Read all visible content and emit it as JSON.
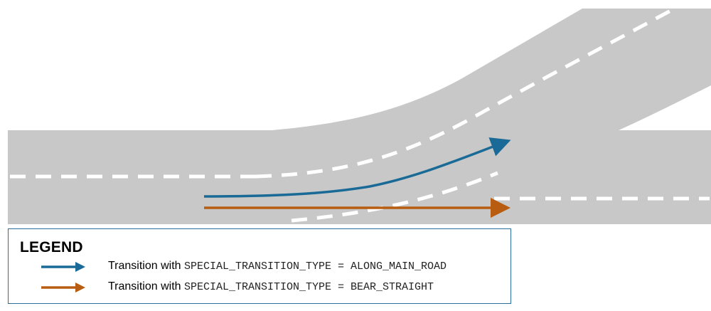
{
  "colors": {
    "road": "#c8c8c8",
    "lane_marking": "#ffffff",
    "along_main_road": "#1a6a97",
    "bear_straight": "#b85c12",
    "legend_border": "#2a6f9e"
  },
  "legend": {
    "title": "LEGEND",
    "items": [
      {
        "prefix": "Transition with ",
        "code": "SPECIAL_TRANSITION_TYPE = ALONG_MAIN_ROAD",
        "color": "#1a6a97",
        "icon": "blue-arrow-icon"
      },
      {
        "prefix": "Transition with ",
        "code": "SPECIAL_TRANSITION_TYPE = BEAR_STRAIGHT",
        "color": "#b85c12",
        "icon": "orange-arrow-icon"
      }
    ]
  }
}
